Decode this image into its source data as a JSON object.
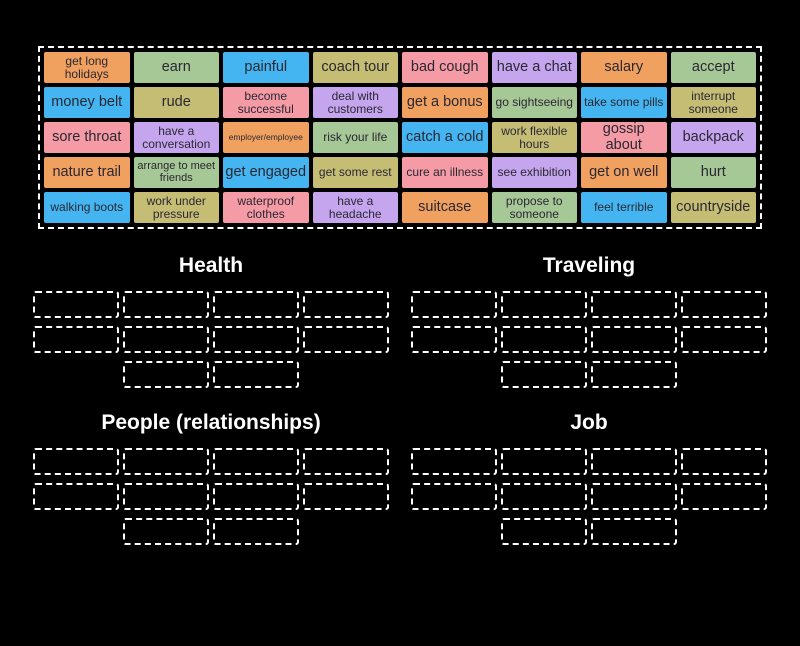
{
  "palette": {
    "orange": "#f0a160",
    "green": "#a6c796",
    "blue": "#44b5f0",
    "khaki": "#c6bd75",
    "pink": "#f59ba5",
    "purple": "#c5a6ee",
    "tile_text": "#2a2733",
    "background": "#000000",
    "slot_border": "#ffffff",
    "header_text": "#ffffff"
  },
  "board": {
    "tiles": [
      {
        "label": "get long holidays",
        "color": "orange"
      },
      {
        "label": "earn",
        "color": "green"
      },
      {
        "label": "painful",
        "color": "blue"
      },
      {
        "label": "coach tour",
        "color": "khaki"
      },
      {
        "label": "bad cough",
        "color": "pink"
      },
      {
        "label": "have a chat",
        "color": "purple"
      },
      {
        "label": "salary",
        "color": "orange"
      },
      {
        "label": "accept",
        "color": "green"
      },
      {
        "label": "money belt",
        "color": "blue"
      },
      {
        "label": "rude",
        "color": "khaki"
      },
      {
        "label": "become successful",
        "color": "pink"
      },
      {
        "label": "deal with customers",
        "color": "purple"
      },
      {
        "label": "get a bonus",
        "color": "orange"
      },
      {
        "label": "go sightseeing",
        "color": "green"
      },
      {
        "label": "take some pills",
        "color": "blue"
      },
      {
        "label": "interrupt someone",
        "color": "khaki"
      },
      {
        "label": "sore throat",
        "color": "pink"
      },
      {
        "label": "have a conversation",
        "color": "purple"
      },
      {
        "label": "employer/employee",
        "color": "orange"
      },
      {
        "label": "risk your life",
        "color": "green"
      },
      {
        "label": "catch a cold",
        "color": "blue"
      },
      {
        "label": "work flexible hours",
        "color": "khaki"
      },
      {
        "label": "gossip about",
        "color": "pink"
      },
      {
        "label": "backpack",
        "color": "purple"
      },
      {
        "label": "nature trail",
        "color": "orange"
      },
      {
        "label": "arrange to meet friends",
        "color": "green"
      },
      {
        "label": "get engaged",
        "color": "blue"
      },
      {
        "label": "get some rest",
        "color": "khaki"
      },
      {
        "label": "cure an illness",
        "color": "pink"
      },
      {
        "label": "see exhibition",
        "color": "purple"
      },
      {
        "label": "get on well",
        "color": "orange"
      },
      {
        "label": "hurt",
        "color": "green"
      },
      {
        "label": "walking boots",
        "color": "blue"
      },
      {
        "label": "work under pressure",
        "color": "khaki"
      },
      {
        "label": "waterproof clothes",
        "color": "pink"
      },
      {
        "label": "have a headache",
        "color": "purple"
      },
      {
        "label": "suitcase",
        "color": "orange"
      },
      {
        "label": "propose to someone",
        "color": "green"
      },
      {
        "label": "feel terrible",
        "color": "blue"
      },
      {
        "label": "countryside",
        "color": "khaki"
      }
    ]
  },
  "groups": [
    {
      "label": "Health",
      "slot_count": 10
    },
    {
      "label": "Traveling",
      "slot_count": 10
    },
    {
      "label": "People (relationships)",
      "slot_count": 10
    },
    {
      "label": "Job",
      "slot_count": 10
    }
  ]
}
